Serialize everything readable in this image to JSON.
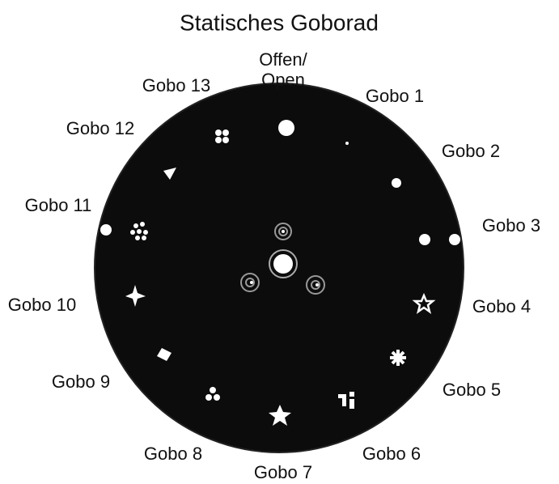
{
  "title": "Statisches Goborad",
  "open_label": [
    "Offen/",
    "Open"
  ],
  "gobos": [
    "Gobo 1",
    "Gobo 2",
    "Gobo 3",
    "Gobo 4",
    "Gobo 5",
    "Gobo 6",
    "Gobo 7",
    "Gobo 8",
    "Gobo 9",
    "Gobo 10",
    "Gobo 11",
    "Gobo 12",
    "Gobo 13"
  ]
}
